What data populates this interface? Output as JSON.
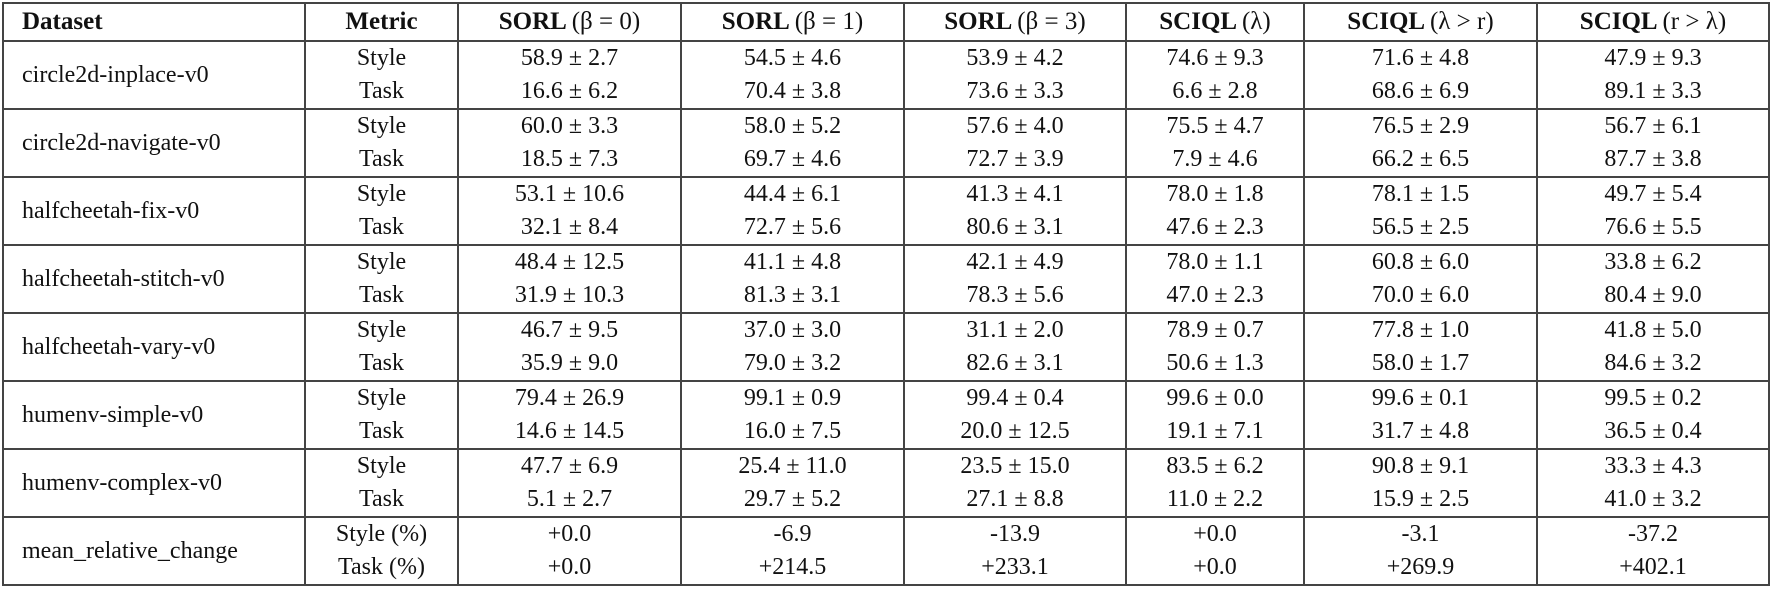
{
  "table": {
    "headers": [
      {
        "label": "Dataset",
        "param": ""
      },
      {
        "label": "Metric",
        "param": ""
      },
      {
        "label": "SORL",
        "param": "(β = 0)"
      },
      {
        "label": "SORL",
        "param": "(β = 1)"
      },
      {
        "label": "SORL",
        "param": "(β = 3)"
      },
      {
        "label": "SCIQL",
        "param": "(λ)"
      },
      {
        "label": "SCIQL",
        "param": "(λ > r)"
      },
      {
        "label": "SCIQL",
        "param": "(r > λ)"
      }
    ],
    "groups": [
      {
        "dataset": "circle2d-inplace-v0",
        "metrics": [
          "Style",
          "Task"
        ],
        "values": [
          [
            "58.9 ± 2.7",
            "16.6 ± 6.2"
          ],
          [
            "54.5 ± 4.6",
            "70.4 ± 3.8"
          ],
          [
            "53.9 ± 4.2",
            "73.6 ± 3.3"
          ],
          [
            "74.6 ± 9.3",
            "6.6 ± 2.8"
          ],
          [
            "71.6 ± 4.8",
            "68.6 ± 6.9"
          ],
          [
            "47.9 ± 9.3",
            "89.1 ± 3.3"
          ]
        ]
      },
      {
        "dataset": "circle2d-navigate-v0",
        "metrics": [
          "Style",
          "Task"
        ],
        "values": [
          [
            "60.0 ± 3.3",
            "18.5 ± 7.3"
          ],
          [
            "58.0 ± 5.2",
            "69.7 ± 4.6"
          ],
          [
            "57.6 ± 4.0",
            "72.7 ± 3.9"
          ],
          [
            "75.5 ± 4.7",
            "7.9 ± 4.6"
          ],
          [
            "76.5 ± 2.9",
            "66.2 ± 6.5"
          ],
          [
            "56.7 ± 6.1",
            "87.7 ± 3.8"
          ]
        ]
      },
      {
        "dataset": "halfcheetah-fix-v0",
        "metrics": [
          "Style",
          "Task"
        ],
        "values": [
          [
            "53.1 ± 10.6",
            "32.1 ± 8.4"
          ],
          [
            "44.4 ± 6.1",
            "72.7 ± 5.6"
          ],
          [
            "41.3 ± 4.1",
            "80.6 ± 3.1"
          ],
          [
            "78.0 ± 1.8",
            "47.6 ± 2.3"
          ],
          [
            "78.1 ± 1.5",
            "56.5 ± 2.5"
          ],
          [
            "49.7 ± 5.4",
            "76.6 ± 5.5"
          ]
        ]
      },
      {
        "dataset": "halfcheetah-stitch-v0",
        "metrics": [
          "Style",
          "Task"
        ],
        "values": [
          [
            "48.4 ± 12.5",
            "31.9 ± 10.3"
          ],
          [
            "41.1 ± 4.8",
            "81.3 ± 3.1"
          ],
          [
            "42.1 ± 4.9",
            "78.3 ± 5.6"
          ],
          [
            "78.0 ± 1.1",
            "47.0 ± 2.3"
          ],
          [
            "60.8 ± 6.0",
            "70.0 ± 6.0"
          ],
          [
            "33.8 ± 6.2",
            "80.4 ± 9.0"
          ]
        ]
      },
      {
        "dataset": "halfcheetah-vary-v0",
        "metrics": [
          "Style",
          "Task"
        ],
        "values": [
          [
            "46.7 ± 9.5",
            "35.9 ± 9.0"
          ],
          [
            "37.0 ± 3.0",
            "79.0 ± 3.2"
          ],
          [
            "31.1 ± 2.0",
            "82.6 ± 3.1"
          ],
          [
            "78.9 ± 0.7",
            "50.6 ± 1.3"
          ],
          [
            "77.8 ± 1.0",
            "58.0 ± 1.7"
          ],
          [
            "41.8 ± 5.0",
            "84.6 ± 3.2"
          ]
        ]
      },
      {
        "dataset": "humenv-simple-v0",
        "metrics": [
          "Style",
          "Task"
        ],
        "values": [
          [
            "79.4 ± 26.9",
            "14.6 ± 14.5"
          ],
          [
            "99.1 ± 0.9",
            "16.0 ± 7.5"
          ],
          [
            "99.4 ± 0.4",
            "20.0 ± 12.5"
          ],
          [
            "99.6 ± 0.0",
            "19.1 ± 7.1"
          ],
          [
            "99.6 ± 0.1",
            "31.7 ± 4.8"
          ],
          [
            "99.5 ± 0.2",
            "36.5 ± 0.4"
          ]
        ]
      },
      {
        "dataset": "humenv-complex-v0",
        "metrics": [
          "Style",
          "Task"
        ],
        "values": [
          [
            "47.7 ± 6.9",
            "5.1 ± 2.7"
          ],
          [
            "25.4 ± 11.0",
            "29.7 ± 5.2"
          ],
          [
            "23.5 ± 15.0",
            "27.1 ± 8.8"
          ],
          [
            "83.5 ± 6.2",
            "11.0 ± 2.2"
          ],
          [
            "90.8 ± 9.1",
            "15.9 ± 2.5"
          ],
          [
            "33.3 ± 4.3",
            "41.0 ± 3.2"
          ]
        ]
      },
      {
        "dataset": "mean_relative_change",
        "metrics": [
          "Style (%)",
          "Task (%)"
        ],
        "values": [
          [
            "+0.0",
            "+0.0"
          ],
          [
            "-6.9",
            "+214.5"
          ],
          [
            "-13.9",
            "+233.1"
          ],
          [
            "+0.0",
            "+0.0"
          ],
          [
            "-3.1",
            "+269.9"
          ],
          [
            "-37.2",
            "+402.1"
          ]
        ]
      }
    ]
  }
}
